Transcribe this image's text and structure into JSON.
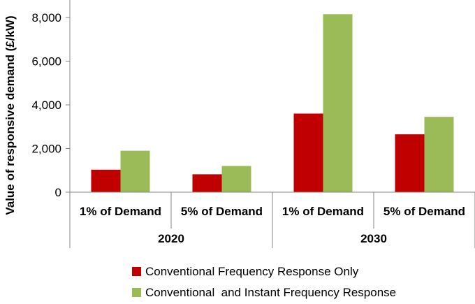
{
  "chart_data": {
    "type": "bar",
    "title": "",
    "ylabel": "Value of responsive demand (£/kW)",
    "xlabel": "",
    "ylim": [
      0,
      8800
    ],
    "yticks": [
      0,
      2000,
      4000,
      6000,
      8000
    ],
    "ytick_labels": [
      "0",
      "2,000",
      "4,000",
      "6,000",
      "8,000"
    ],
    "categories": [
      "1% of Demand",
      "5% of Demand",
      "1% of Demand",
      "5% of Demand"
    ],
    "groups": [
      {
        "label": "2020",
        "categories": [
          0,
          1
        ]
      },
      {
        "label": "2030",
        "categories": [
          2,
          3
        ]
      }
    ],
    "series": [
      {
        "name": "Conventional Frequency Response Only",
        "color": "#c00000",
        "values": [
          1030,
          820,
          3600,
          2650
        ]
      },
      {
        "name": "Conventional  and Instant Frequency Response",
        "color": "#9bbb59",
        "values": [
          1900,
          1200,
          8150,
          3450
        ]
      }
    ],
    "legend_position": "bottom",
    "grid": false
  }
}
